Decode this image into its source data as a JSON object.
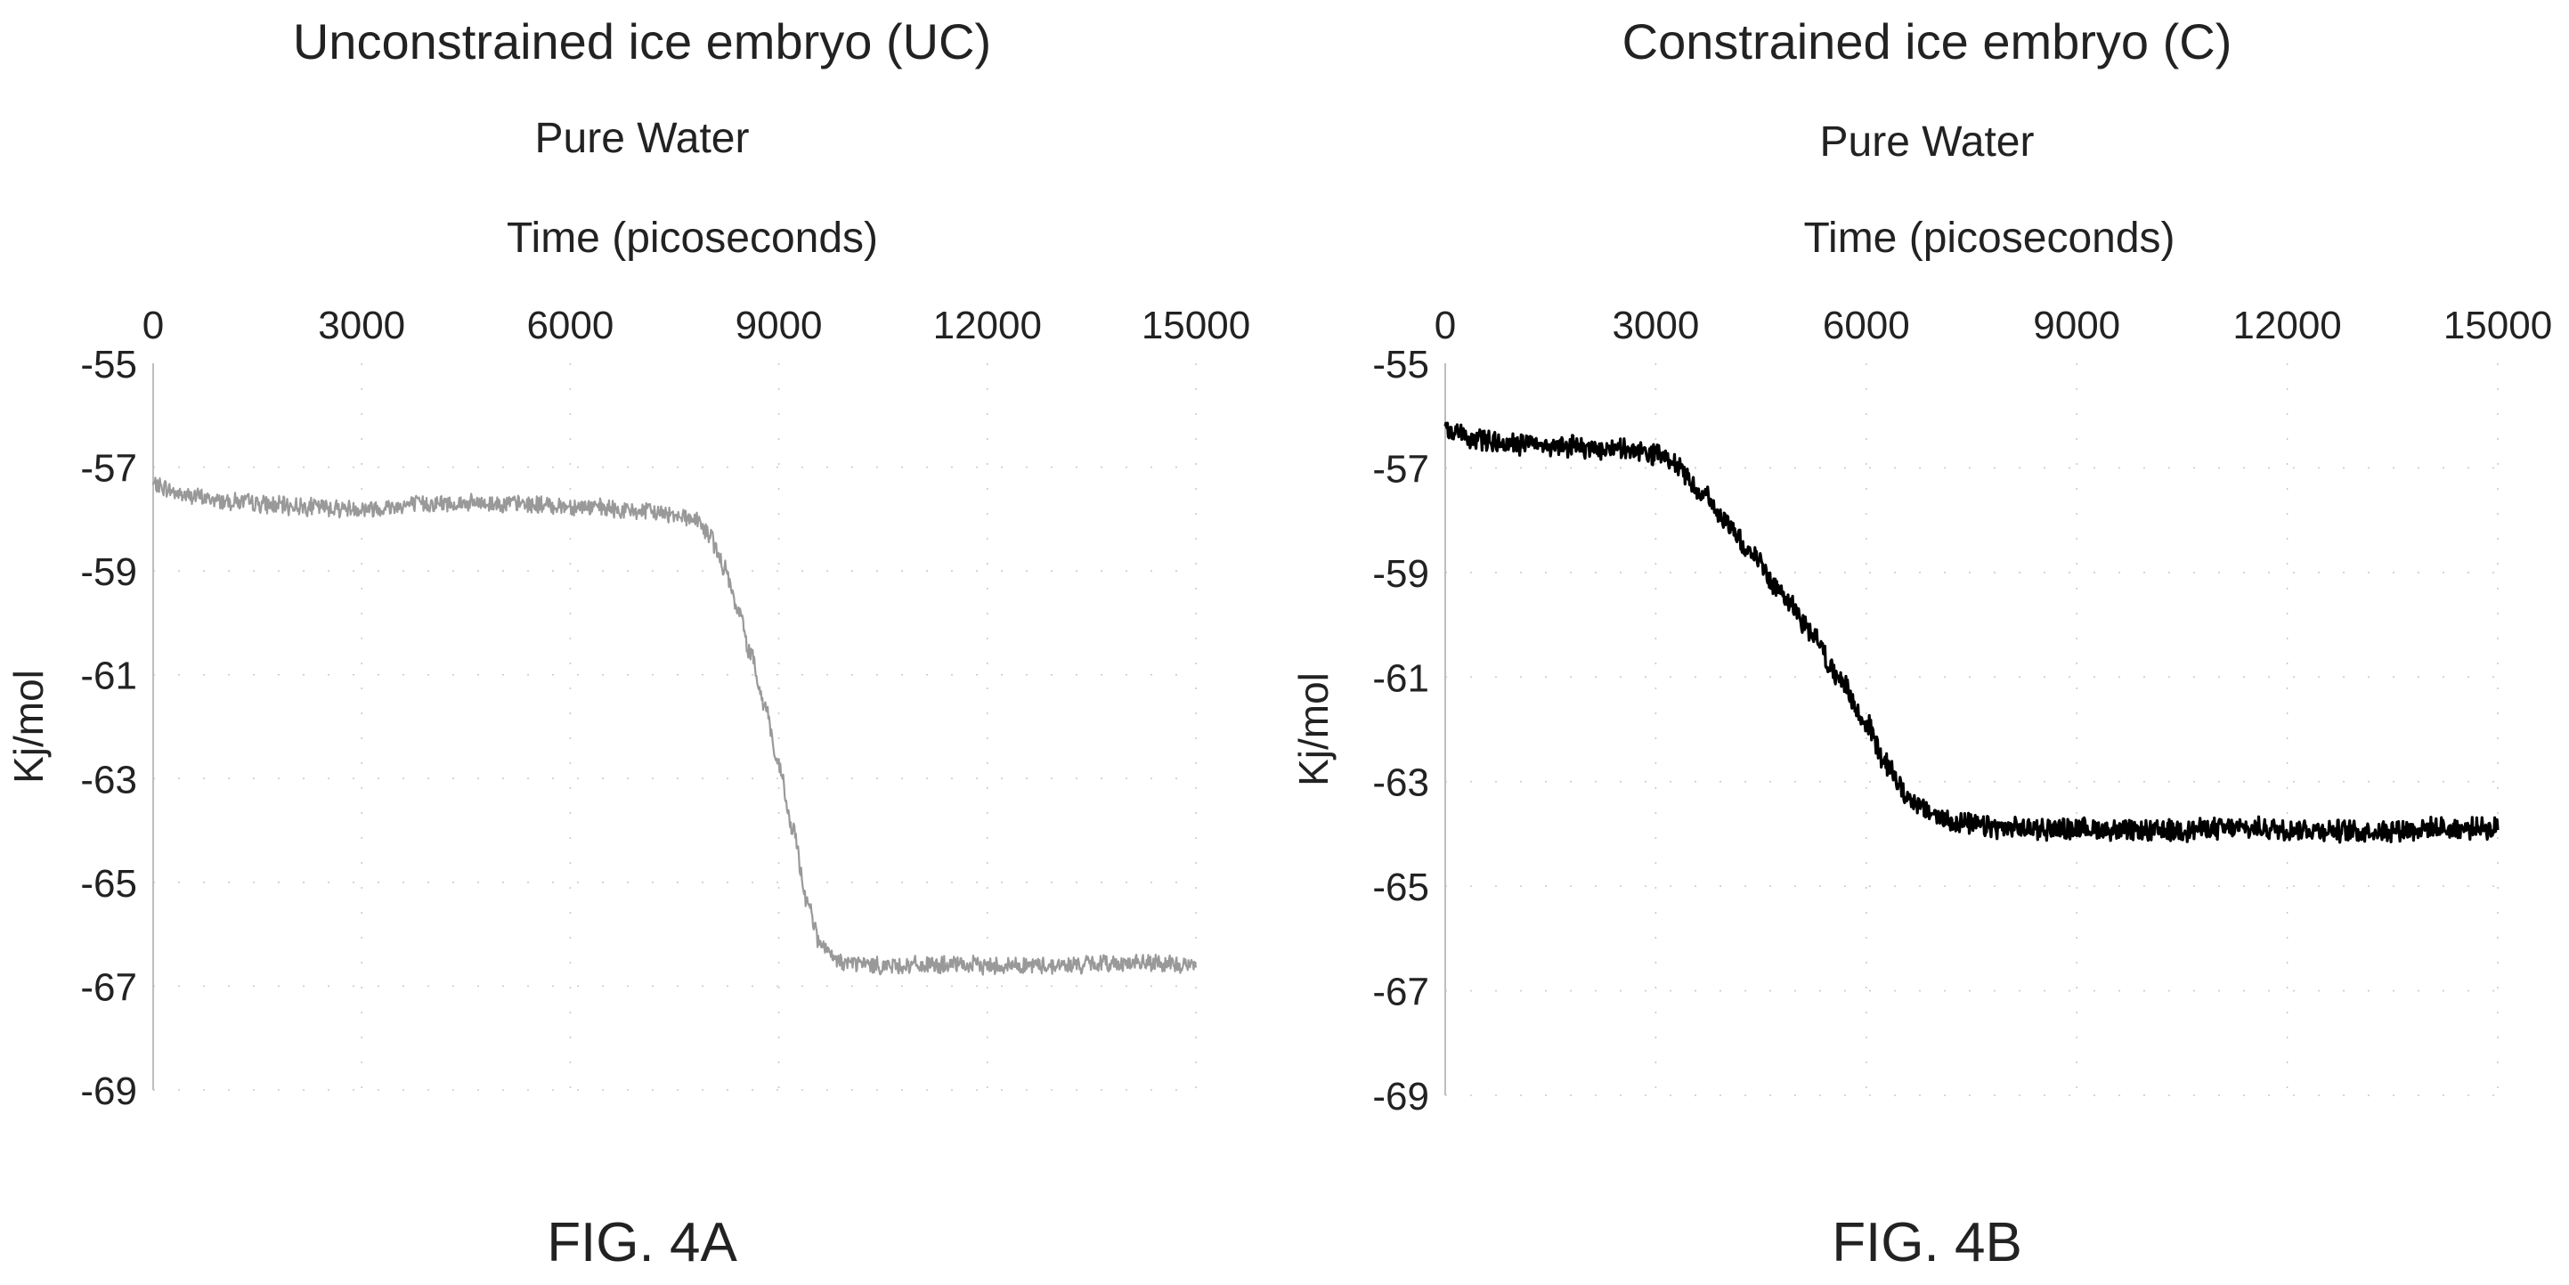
{
  "chart_data": [
    {
      "type": "line",
      "title": "Unconstrained ice embryo (UC)",
      "subtitle": "Pure Water",
      "xlabel": "Time (picoseconds)",
      "ylabel": "Kj/mol",
      "x_axis_position": "top",
      "xlim": [
        0,
        15000
      ],
      "ylim": [
        -69,
        -55
      ],
      "x_ticks": [
        0,
        3000,
        6000,
        9000,
        12000,
        15000
      ],
      "y_ticks": [
        -55,
        -57,
        -59,
        -61,
        -63,
        -65,
        -67,
        -69
      ],
      "grid": "dotted",
      "figure_label": "FIG. 4A",
      "series": [
        {
          "color": "#999999",
          "x": [
            0,
            500,
            1000,
            2000,
            3000,
            4000,
            5000,
            6000,
            7000,
            7500,
            7800,
            8000,
            8200,
            8400,
            8600,
            8800,
            9000,
            9200,
            9400,
            9600,
            9800,
            10000,
            10500,
            11000,
            12000,
            13000,
            14000,
            15000
          ],
          "y": [
            -57.35,
            -57.55,
            -57.65,
            -57.75,
            -57.8,
            -57.7,
            -57.7,
            -57.75,
            -57.85,
            -57.9,
            -58.0,
            -58.3,
            -58.9,
            -59.7,
            -60.6,
            -61.6,
            -62.8,
            -64.0,
            -65.3,
            -66.2,
            -66.5,
            -66.55,
            -66.6,
            -66.6,
            -66.6,
            -66.6,
            -66.55,
            -66.6
          ],
          "noise": 0.15
        }
      ]
    },
    {
      "type": "line",
      "title": "Constrained ice embryo (C)",
      "subtitle": "Pure Water",
      "xlabel": "Time (picoseconds)",
      "ylabel": "Kj/mol",
      "x_axis_position": "top",
      "xlim": [
        0,
        15000
      ],
      "ylim": [
        -69,
        -55
      ],
      "x_ticks": [
        0,
        3000,
        6000,
        9000,
        12000,
        15000
      ],
      "y_ticks": [
        -55,
        -57,
        -59,
        -61,
        -63,
        -65,
        -67,
        -69
      ],
      "grid": "dotted",
      "figure_label": "FIG. 4B",
      "series": [
        {
          "color": "#000000",
          "x": [
            0,
            500,
            1000,
            2000,
            2500,
            3000,
            3300,
            3600,
            4000,
            4400,
            4800,
            5200,
            5600,
            6000,
            6300,
            6600,
            6900,
            7200,
            7600,
            8000,
            9000,
            10000,
            11000,
            12000,
            13000,
            14000,
            15000
          ],
          "y": [
            -56.3,
            -56.45,
            -56.55,
            -56.6,
            -56.65,
            -56.75,
            -56.95,
            -57.4,
            -58.0,
            -58.7,
            -59.4,
            -60.1,
            -61.0,
            -61.9,
            -62.7,
            -63.3,
            -63.6,
            -63.75,
            -63.85,
            -63.9,
            -63.9,
            -63.95,
            -63.9,
            -63.9,
            -63.95,
            -63.9,
            -63.9
          ],
          "noise": 0.18
        }
      ]
    }
  ]
}
